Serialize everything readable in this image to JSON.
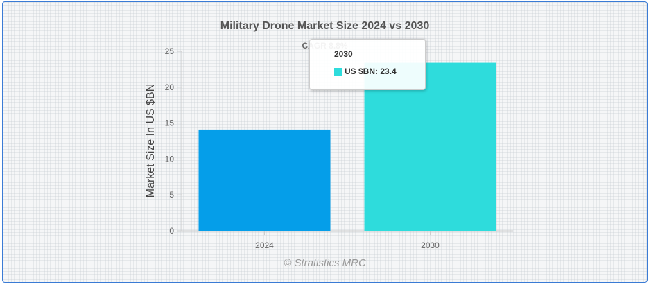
{
  "chart_data": {
    "type": "bar",
    "title": "Military Drone Market Size 2024 vs 2030",
    "subtitle": "CAGR 8.8%",
    "ylabel": "Market Size In US $BN",
    "categories": [
      "2024",
      "2030"
    ],
    "values": [
      14.1,
      23.4
    ],
    "bar_colors": [
      "#059ee9",
      "#2edcdc"
    ],
    "ylim": [
      0,
      25
    ],
    "yticks": [
      0,
      5,
      10,
      15,
      20,
      25
    ],
    "grid": false,
    "legend": "none"
  },
  "tooltip": {
    "title": "2030",
    "label": "US $BN: 23.4",
    "color": "#2edcdc"
  },
  "watermark": "© Stratistics MRC"
}
